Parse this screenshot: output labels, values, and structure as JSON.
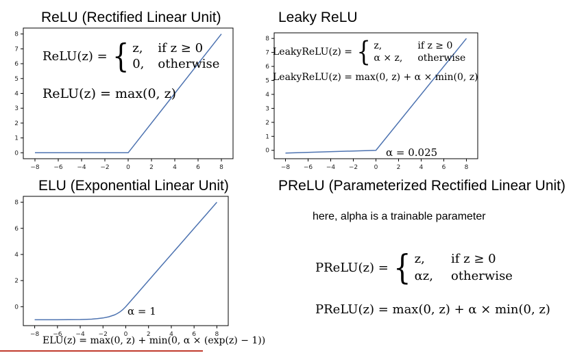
{
  "relu": {
    "title": "ReLU (Rectified Linear Unit)",
    "lhs": "ReLU(z) =",
    "case1_val": "z,",
    "case1_cond": "if z ≥ 0",
    "case2_val": "0,",
    "case2_cond": "otherwise",
    "max_formula": "ReLU(z) = max(0, z)"
  },
  "leaky": {
    "title": "Leaky ReLU",
    "lhs": "LeakyReLU(z) =",
    "case1_val": "z,",
    "case1_cond": "if z ≥ 0",
    "case2_val": "α × z,",
    "case2_cond": "otherwise",
    "max_formula": "LeakyReLU(z) = max(0, z) + α × min(0, z)",
    "alpha_note": "α = 0.025"
  },
  "elu": {
    "title": "ELU (Exponential Linear Unit)",
    "alpha_note": "α = 1",
    "formula": "ELU(z) = max(0, z) + min(0, α × (exp(z) − 1))"
  },
  "prelu": {
    "title": "PReLU (Parameterized Rectified Linear Unit)",
    "subtitle": "here, alpha is a trainable parameter",
    "lhs": "PReLU(z) =",
    "case1_val": "z,",
    "case1_cond": "if z ≥ 0",
    "case2_val": "αz,",
    "case2_cond": "otherwise",
    "max_formula": "PReLU(z) = max(0, z) + α × min(0, z)"
  },
  "chart_data": [
    {
      "type": "line",
      "title": "ReLU (Rectified Linear Unit)",
      "x": [
        -8,
        0,
        8
      ],
      "y": [
        0,
        0,
        8
      ],
      "xticks": [
        -8,
        -6,
        -4,
        -2,
        0,
        2,
        4,
        6,
        8
      ],
      "yticks": [
        0,
        1,
        2,
        3,
        4,
        5,
        6,
        7,
        8
      ],
      "xlim": [
        -9,
        9
      ],
      "ylim": [
        -0.4,
        8.4
      ],
      "line_color": "#4c72b0",
      "grid": false
    },
    {
      "type": "line",
      "title": "Leaky ReLU",
      "x": [
        -8,
        0,
        8
      ],
      "y": [
        -0.2,
        0,
        8
      ],
      "xticks": [
        -8,
        -6,
        -4,
        -2,
        0,
        2,
        4,
        6,
        8
      ],
      "yticks": [
        0,
        1,
        2,
        3,
        4,
        5,
        6,
        7,
        8
      ],
      "xlim": [
        -9,
        9
      ],
      "ylim": [
        -0.6,
        8.4
      ],
      "line_color": "#4c72b0",
      "grid": false
    },
    {
      "type": "line",
      "title": "ELU (Exponential Linear Unit)",
      "x": [
        -8,
        -7,
        -6,
        -5,
        -4,
        -3,
        -2.5,
        -2,
        -1.5,
        -1,
        -0.75,
        -0.5,
        -0.25,
        0,
        1,
        2,
        3,
        4,
        5,
        6,
        7,
        8
      ],
      "y": [
        -0.9997,
        -0.9991,
        -0.9975,
        -0.9933,
        -0.9817,
        -0.9502,
        -0.9179,
        -0.8647,
        -0.7769,
        -0.6321,
        -0.5276,
        -0.3935,
        -0.2212,
        0,
        1,
        2,
        3,
        4,
        5,
        6,
        7,
        8
      ],
      "xticks": [
        -8,
        -6,
        -4,
        -2,
        0,
        2,
        4,
        6,
        8
      ],
      "yticks": [
        0,
        2,
        4,
        6,
        8
      ],
      "xlim": [
        -9,
        9
      ],
      "ylim": [
        -1.45,
        8.45
      ],
      "line_color": "#4c72b0",
      "grid": false
    }
  ]
}
